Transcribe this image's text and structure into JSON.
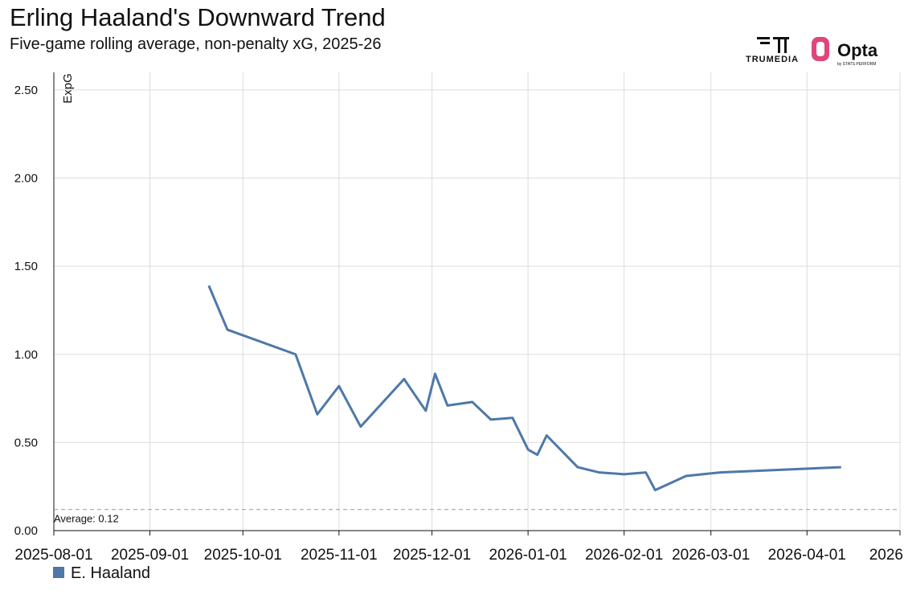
{
  "chart_data": {
    "type": "line",
    "title": "Erling Haaland's Downward Trend",
    "subtitle": "Five-game rolling average, non-penalty xG, 2025-26",
    "y_label": "ExpG",
    "logos": [
      "TRUMEDIA",
      "Opta",
      "by STATS PERFORM"
    ],
    "x": [
      "2025-09-20",
      "2025-09-26",
      "2025-10-18",
      "2025-10-25",
      "2025-11-01",
      "2025-11-08",
      "2025-11-22",
      "2025-11-29",
      "2025-12-02",
      "2025-12-06",
      "2025-12-14",
      "2025-12-20",
      "2025-12-27",
      "2026-01-01",
      "2026-01-04",
      "2026-01-07",
      "2026-01-17",
      "2026-01-24",
      "2026-02-01",
      "2026-02-08",
      "2026-02-11",
      "2026-02-21",
      "2026-03-04",
      "2026-04-12"
    ],
    "series": [
      {
        "name": "E. Haaland",
        "color": "#4e78a8",
        "values": [
          1.39,
          1.14,
          1.0,
          0.66,
          0.82,
          0.59,
          0.86,
          0.68,
          0.89,
          0.71,
          0.73,
          0.63,
          0.64,
          0.46,
          0.43,
          0.54,
          0.36,
          0.33,
          0.32,
          0.33,
          0.23,
          0.31,
          0.33,
          0.36
        ]
      }
    ],
    "xlim": [
      "2025-08-01",
      "2026-05-01"
    ],
    "xticks": [
      "2025-08-01",
      "2025-09-01",
      "2025-10-01",
      "2025-11-01",
      "2025-12-01",
      "2026-01-01",
      "2026-02-01",
      "2026-03-01",
      "2026-04-01",
      {
        "value": "2026-05-01",
        "label": "2026"
      }
    ],
    "ylim": [
      0,
      2.6
    ],
    "yticks": [
      {
        "value": 0,
        "label": "0.00"
      },
      {
        "value": 0.5,
        "label": "0.50"
      },
      {
        "value": 1,
        "label": "1.00"
      },
      {
        "value": 1.5,
        "label": "1.50"
      },
      {
        "value": 2,
        "label": "2.00"
      },
      {
        "value": 2.5,
        "label": "2.50"
      }
    ],
    "grid": true,
    "annotations": [
      {
        "value": 0.12,
        "label": "Average: 0.12"
      }
    ]
  }
}
